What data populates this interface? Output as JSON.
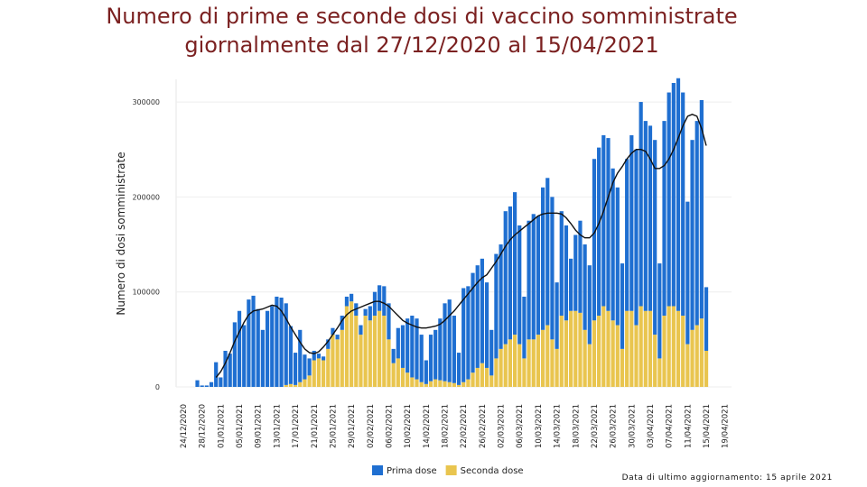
{
  "chart_data": {
    "type": "stacked_bar",
    "title": [
      "Numero di prime e seconde dosi di vaccino somministrate",
      "giornalmente dal 27/12/2020 al 15/04/2021"
    ],
    "ylabel": "Numero di dosi somministrate",
    "footnote": "Data di ultimo aggiornamento: 15 aprile 2021",
    "ylim": [
      0,
      320000
    ],
    "yticks": [
      0,
      100000,
      200000,
      300000
    ],
    "grid": true,
    "legend": "bottom",
    "categories": [
      "24/12/2020",
      null,
      null,
      null,
      "28/12/2020",
      null,
      null,
      null,
      "01/01/2021",
      null,
      null,
      null,
      "05/01/2021",
      null,
      null,
      null,
      "09/01/2021",
      null,
      null,
      null,
      "13/01/2021",
      null,
      null,
      null,
      "17/01/2021",
      null,
      null,
      null,
      "21/01/2021",
      null,
      null,
      null,
      "25/01/2021",
      null,
      null,
      null,
      "29/01/2021",
      null,
      null,
      null,
      "02/02/2021",
      null,
      null,
      null,
      "06/02/2021",
      null,
      null,
      null,
      "10/02/2021",
      null,
      null,
      null,
      "14/02/2021",
      null,
      null,
      null,
      "18/02/2021",
      null,
      null,
      null,
      "22/02/2021",
      null,
      null,
      null,
      "26/02/2021",
      null,
      null,
      null,
      "02/03/2021",
      null,
      null,
      null,
      "06/03/2021",
      null,
      null,
      null,
      "10/03/2021",
      null,
      null,
      null,
      "14/03/2021",
      null,
      null,
      null,
      "18/03/2021",
      null,
      null,
      null,
      "22/03/2021",
      null,
      null,
      null,
      "26/03/2021",
      null,
      null,
      null,
      "30/03/2021",
      null,
      null,
      null,
      "03/04/2021",
      null,
      null,
      null,
      "07/04/2021",
      null,
      null,
      null,
      "11/04/2021",
      null,
      null,
      null,
      "15/04/2021",
      null,
      null,
      null,
      "19/04/2021"
    ],
    "series": [
      {
        "name": "Prima dose",
        "color": "#1f6fd1",
        "values": [
          null,
          null,
          null,
          7000,
          1500,
          1500,
          5000,
          26000,
          10000,
          38000,
          35000,
          68000,
          80000,
          65000,
          92000,
          96000,
          82000,
          60000,
          80000,
          85000,
          95000,
          94000,
          86000,
          61000,
          34000,
          55000,
          26000,
          18000,
          10000,
          5000,
          4000,
          10000,
          7000,
          5000,
          15000,
          10000,
          8000,
          13000,
          10000,
          7000,
          15000,
          25000,
          27000,
          31000,
          38000,
          15000,
          32000,
          45000,
          57000,
          65000,
          64000,
          50000,
          25000,
          49000,
          52000,
          65000,
          82000,
          87000,
          71000,
          34000,
          99000,
          98000,
          105000,
          108000,
          110000,
          90000,
          48000,
          110000,
          110000,
          140000,
          140000,
          150000,
          125000,
          65000,
          125000,
          132000,
          125000,
          150000,
          155000,
          150000,
          70000,
          110000,
          100000,
          55000,
          80000,
          97000,
          90000,
          83000,
          170000,
          177000,
          180000,
          182000,
          160000,
          145000,
          90000,
          160000,
          185000,
          185000,
          215000,
          200000,
          195000,
          205000,
          100000,
          205000,
          225000,
          235000,
          245000,
          235000,
          150000,
          200000,
          215000,
          230000,
          67000,
          null,
          null,
          null,
          null
        ]
      },
      {
        "name": "Seconda dose",
        "color": "#e9c54f",
        "values": [
          null,
          null,
          null,
          0,
          0,
          0,
          0,
          0,
          0,
          0,
          0,
          0,
          0,
          0,
          0,
          0,
          0,
          0,
          0,
          0,
          0,
          0,
          2000,
          3000,
          2000,
          5000,
          8000,
          12000,
          28000,
          30000,
          28000,
          40000,
          55000,
          50000,
          60000,
          85000,
          90000,
          75000,
          55000,
          75000,
          70000,
          75000,
          80000,
          75000,
          50000,
          25000,
          30000,
          20000,
          15000,
          10000,
          8000,
          5000,
          3000,
          6000,
          8000,
          7000,
          6000,
          5000,
          4000,
          2000,
          5000,
          8000,
          15000,
          20000,
          25000,
          20000,
          12000,
          30000,
          40000,
          45000,
          50000,
          55000,
          45000,
          30000,
          50000,
          50000,
          55000,
          60000,
          65000,
          50000,
          40000,
          75000,
          70000,
          80000,
          80000,
          78000,
          60000,
          45000,
          70000,
          75000,
          85000,
          80000,
          70000,
          65000,
          40000,
          80000,
          80000,
          65000,
          85000,
          80000,
          80000,
          55000,
          30000,
          75000,
          85000,
          85000,
          80000,
          75000,
          45000,
          60000,
          65000,
          72000,
          38000,
          null,
          null,
          null,
          null
        ]
      }
    ],
    "moving_average": {
      "color": "#111111",
      "values": [
        null,
        null,
        null,
        null,
        null,
        null,
        null,
        10000,
        16000,
        25000,
        36000,
        48000,
        58000,
        68000,
        76000,
        80000,
        81000,
        82000,
        84000,
        86000,
        85000,
        80000,
        72000,
        63000,
        55000,
        47000,
        40000,
        36000,
        35000,
        37000,
        42000,
        48000,
        55000,
        62000,
        70000,
        76000,
        80000,
        82000,
        84000,
        86000,
        88000,
        90000,
        90000,
        88000,
        85000,
        80000,
        75000,
        70000,
        67000,
        65000,
        63000,
        62000,
        62000,
        63000,
        64000,
        66000,
        70000,
        75000,
        80000,
        86000,
        92000,
        98000,
        104000,
        110000,
        115000,
        118000,
        125000,
        132000,
        140000,
        148000,
        155000,
        160000,
        164000,
        168000,
        172000,
        176000,
        180000,
        182000,
        183000,
        183000,
        183000,
        182000,
        178000,
        172000,
        165000,
        160000,
        157000,
        157000,
        162000,
        172000,
        185000,
        200000,
        215000,
        225000,
        232000,
        240000,
        246000,
        250000,
        250000,
        248000,
        240000,
        230000,
        230000,
        233000,
        240000,
        250000,
        262000,
        275000,
        285000,
        287000,
        285000,
        272000,
        254000,
        null,
        null,
        null,
        null
      ]
    }
  }
}
